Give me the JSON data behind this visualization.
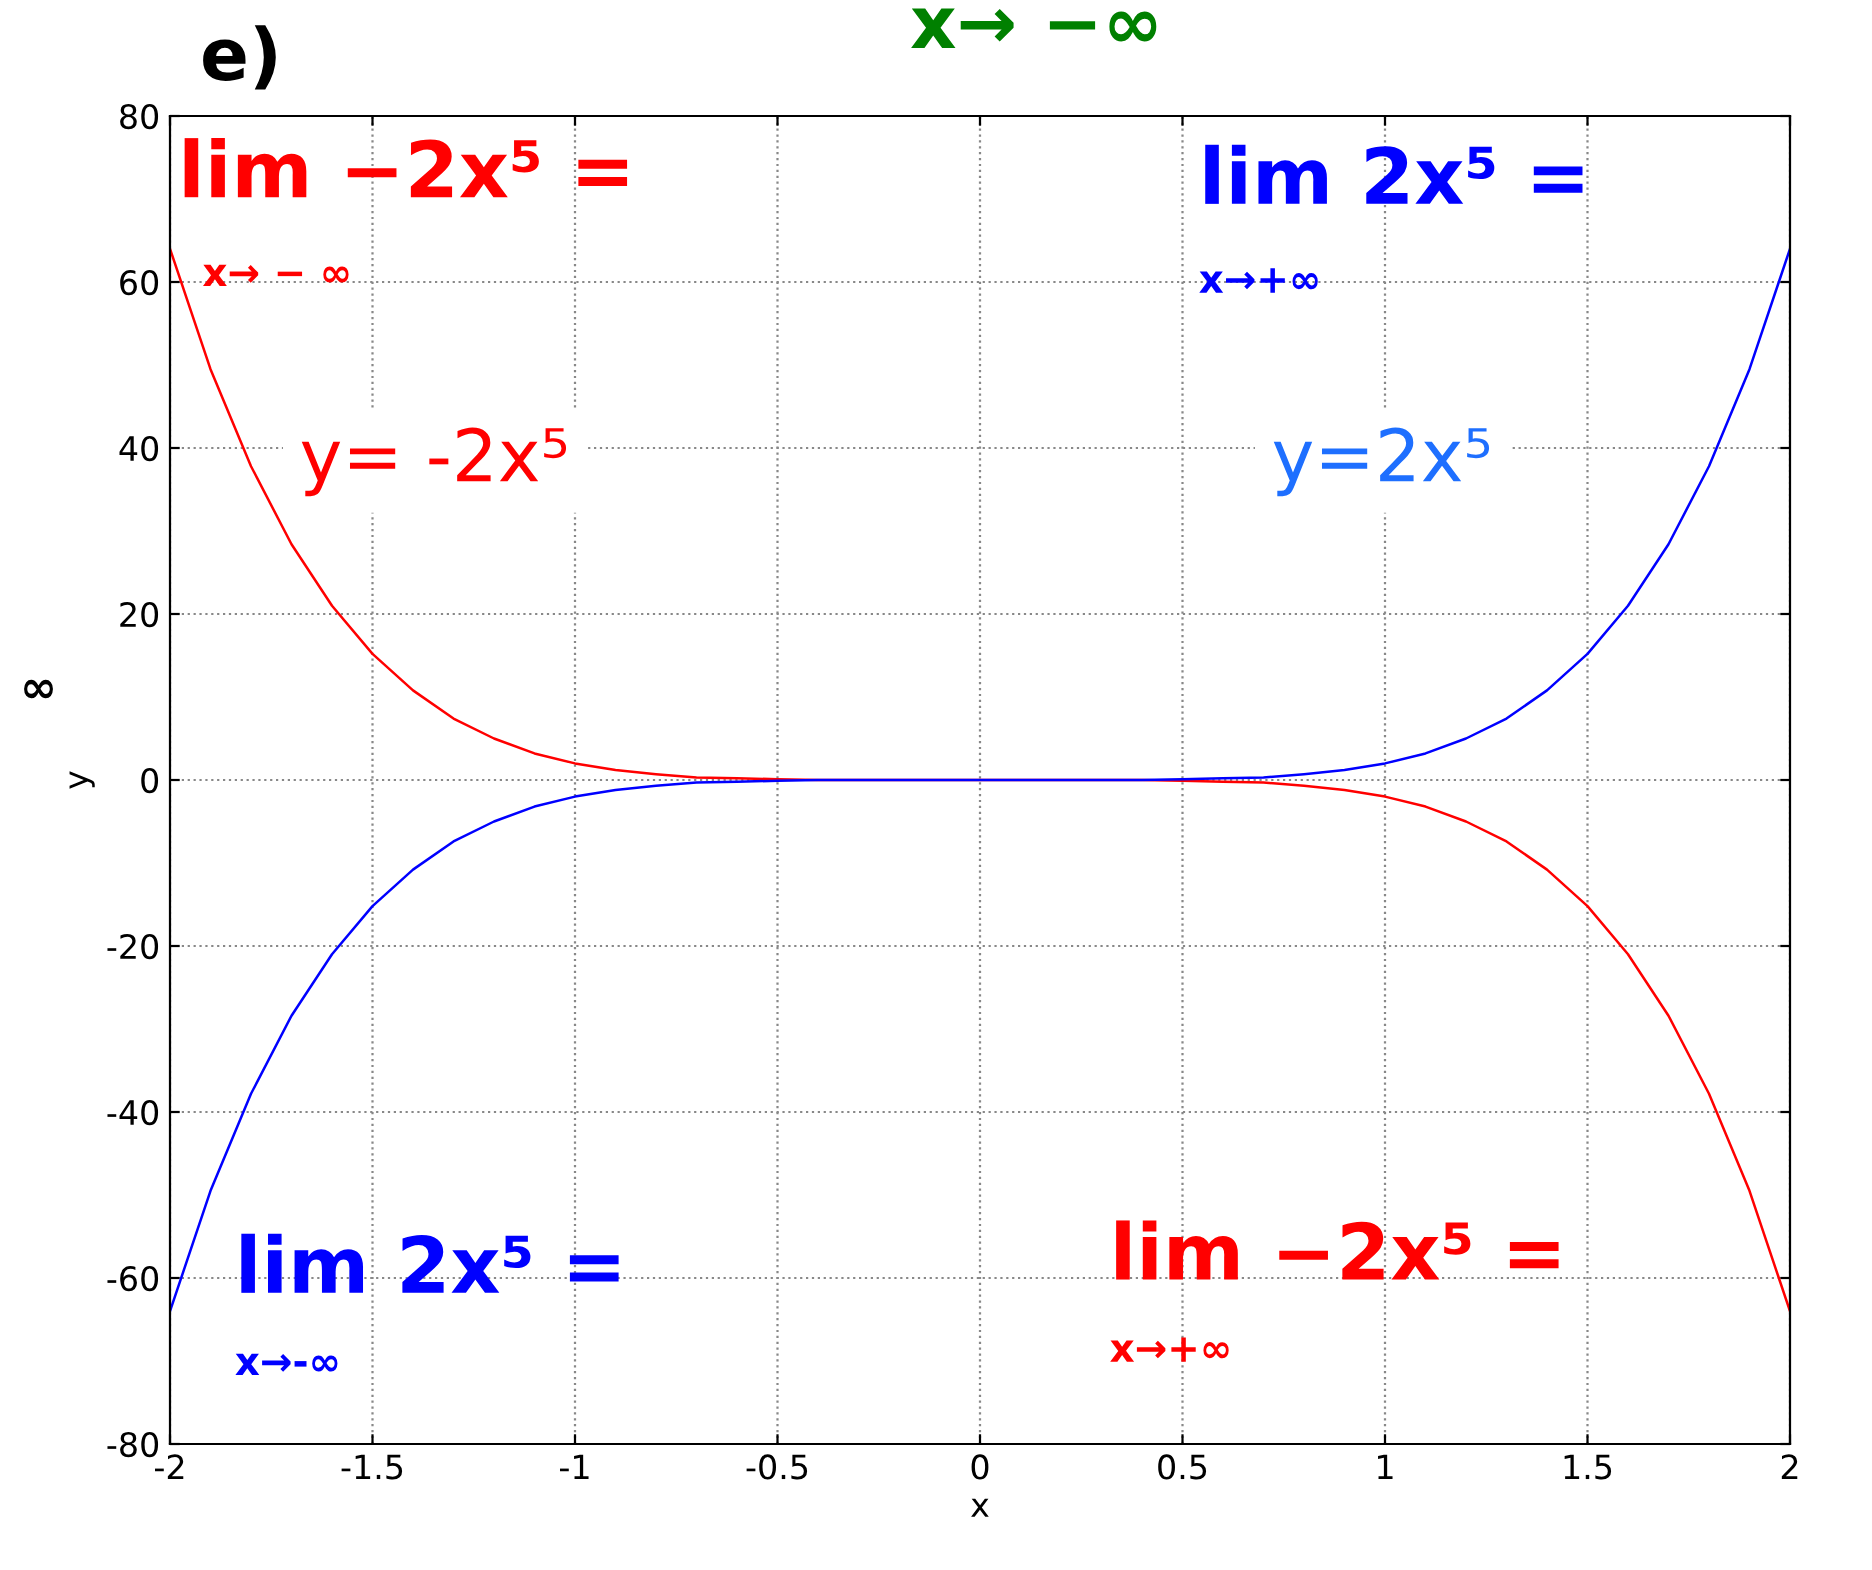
{
  "chart_data": {
    "type": "line",
    "title": "e)",
    "xlabel": "x",
    "ylabel": "y",
    "x": [
      -2,
      -1.9,
      -1.8,
      -1.7,
      -1.6,
      -1.5,
      -1.4,
      -1.3,
      -1.2,
      -1.1,
      -1,
      -0.9,
      -0.8,
      -0.7,
      -0.6,
      -0.5,
      -0.4,
      -0.3,
      -0.2,
      -0.1,
      0,
      0.1,
      0.2,
      0.3,
      0.4,
      0.5,
      0.6,
      0.7,
      0.8,
      0.9,
      1,
      1.1,
      1.2,
      1.3,
      1.4,
      1.5,
      1.6,
      1.7,
      1.8,
      1.9,
      2
    ],
    "series": [
      {
        "color": "#ff0000",
        "values": [
          64,
          49.5,
          37.8,
          28.4,
          21,
          15.2,
          10.8,
          7.4,
          5,
          3.2,
          2,
          1.2,
          0.7,
          0.3,
          0.2,
          0.1,
          0,
          0,
          0,
          0,
          0,
          0,
          0,
          0,
          0,
          -0.1,
          -0.2,
          -0.3,
          -0.7,
          -1.2,
          -2,
          -3.2,
          -5,
          -7.4,
          -10.8,
          -15.2,
          -21,
          -28.4,
          -37.8,
          -49.5,
          -64
        ]
      },
      {
        "color": "#0000ff",
        "values": [
          -64,
          -49.5,
          -37.8,
          -28.4,
          -21,
          -15.2,
          -10.8,
          -7.4,
          -5,
          -3.2,
          -2,
          -1.2,
          -0.7,
          -0.3,
          -0.2,
          -0.1,
          0,
          0,
          0,
          0,
          0,
          0,
          0,
          0,
          0,
          0.1,
          0.2,
          0.3,
          0.7,
          1.2,
          2,
          3.2,
          5,
          7.4,
          10.8,
          15.2,
          21,
          28.4,
          37.8,
          49.5,
          64
        ]
      }
    ],
    "xlim": [
      -2,
      2
    ],
    "xticks": [
      -2,
      -1.5,
      -1,
      -0.5,
      0,
      0.5,
      1,
      1.5,
      2
    ],
    "ylim": [
      -80,
      80
    ],
    "yticks": [
      -80,
      -60,
      -40,
      -20,
      0,
      20,
      40,
      60,
      80
    ],
    "grid": true,
    "marker": "none",
    "line_style": "solid",
    "annotations": [
      "lim −2x⁵ =",
      "x→ − ∞",
      "lim 2x⁵ =",
      "x→+∞",
      "y= -2x⁵",
      "y=2x⁵",
      "lim 2x⁵ =",
      "x→-∞",
      "lim −2x⁵ =",
      "x→+∞",
      "x→ −∞",
      "∞"
    ]
  }
}
